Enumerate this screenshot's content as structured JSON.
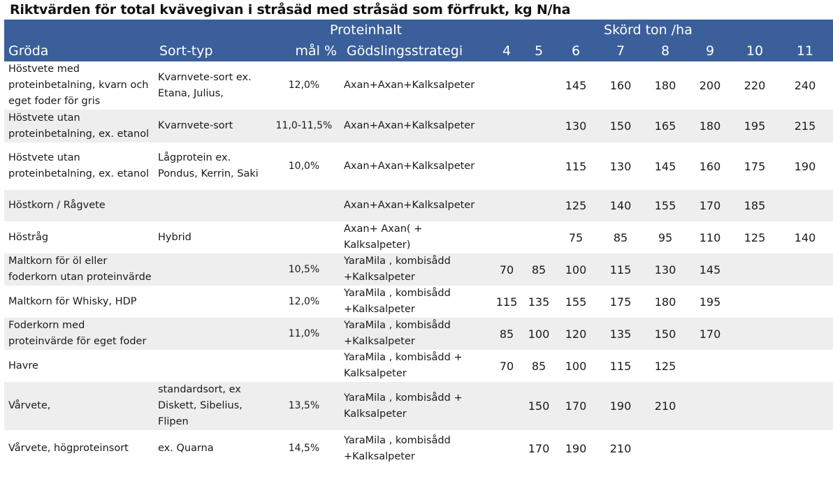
{
  "title": "Riktvärden för total kvävegivan i stråsäd med stråsäd som förfrukt, kg N/ha",
  "header": {
    "crop": "Gröda",
    "variety": "Sort-typ",
    "protein_line1": "Proteinhalt",
    "protein_line2": "mål %",
    "strategy": "Gödslingsstrategi",
    "yield_title": "Skörd ton /ha",
    "yields": [
      "4",
      "5",
      "6",
      "7",
      "8",
      "9",
      "10",
      "11"
    ]
  },
  "rows": [
    {
      "crop": "Höstvete med proteinbetalning, kvarn och eget foder för gris",
      "variety": "Kvarnvete-sort ex. Etana, Julius,",
      "protein": "12,0%",
      "strategy": "Axan+Axan+Kalksalpeter",
      "values": [
        "",
        "",
        "145",
        "160",
        "180",
        "200",
        "220",
        "240"
      ]
    },
    {
      "crop": "Höstvete utan proteinbetalning, ex. etanol",
      "variety": "Kvarnvete-sort",
      "protein": "11,0-11,5%",
      "strategy": "Axan+Axan+Kalksalpeter",
      "values": [
        "",
        "",
        "130",
        "150",
        "165",
        "180",
        "195",
        "215"
      ]
    },
    {
      "crop": "Höstvete utan proteinbetalning, ex. etanol",
      "variety": "Lågprotein ex. Pondus, Kerrin, Saki",
      "protein": "10,0%",
      "strategy": "Axan+Axan+Kalksalpeter",
      "values": [
        "",
        "",
        "115",
        "130",
        "145",
        "160",
        "175",
        "190"
      ]
    },
    {
      "crop": "Höstkorn / Rågvete",
      "variety": "",
      "protein": "",
      "strategy": "Axan+Axan+Kalksalpeter",
      "values": [
        "",
        "",
        "125",
        "140",
        "155",
        "170",
        "185",
        ""
      ]
    },
    {
      "crop": "Höstråg",
      "variety": "Hybrid",
      "protein": "",
      "strategy": "Axan+ Axan( + Kalksalpeter)",
      "values": [
        "",
        "",
        "75",
        "85",
        "95",
        "110",
        "125",
        "140"
      ]
    },
    {
      "crop": "Maltkorn för öl eller foderkorn utan proteinvärde",
      "variety": "",
      "protein": "10,5%",
      "strategy": "YaraMila , kombisådd +Kalksalpeter",
      "values": [
        "70",
        "85",
        "100",
        "115",
        "130",
        "145",
        "",
        ""
      ]
    },
    {
      "crop": "Maltkorn för Whisky, HDP",
      "variety": "",
      "protein": "12,0%",
      "strategy": "YaraMila , kombisådd +Kalksalpeter",
      "values": [
        "115",
        "135",
        "155",
        "175",
        "180",
        "195",
        "",
        ""
      ]
    },
    {
      "crop": "Foderkorn med proteinvärde för eget foder",
      "variety": "",
      "protein": "11,0%",
      "strategy": "YaraMila , kombisådd +Kalksalpeter",
      "values": [
        "85",
        "100",
        "120",
        "135",
        "150",
        "170",
        "",
        ""
      ]
    },
    {
      "crop": "Havre",
      "variety": "",
      "protein": "",
      "strategy": "YaraMila , kombisådd + Kalksalpeter",
      "values": [
        "70",
        "85",
        "100",
        "115",
        "125",
        "",
        "",
        ""
      ]
    },
    {
      "crop": "Vårvete,",
      "variety": "standardsort, ex Diskett, Sibelius, Flipen",
      "protein": "13,5%",
      "strategy": "YaraMila , kombisådd + Kalksalpeter",
      "values": [
        "",
        "150",
        "170",
        "190",
        "210",
        "",
        "",
        ""
      ]
    },
    {
      "crop": "Vårvete, högproteinsort",
      "variety": "ex. Quarna",
      "protein": "14,5%",
      "strategy": "YaraMila , kombisådd +Kalksalpeter",
      "values": [
        "",
        "170",
        "190",
        "210",
        "",
        "",
        "",
        ""
      ]
    }
  ]
}
